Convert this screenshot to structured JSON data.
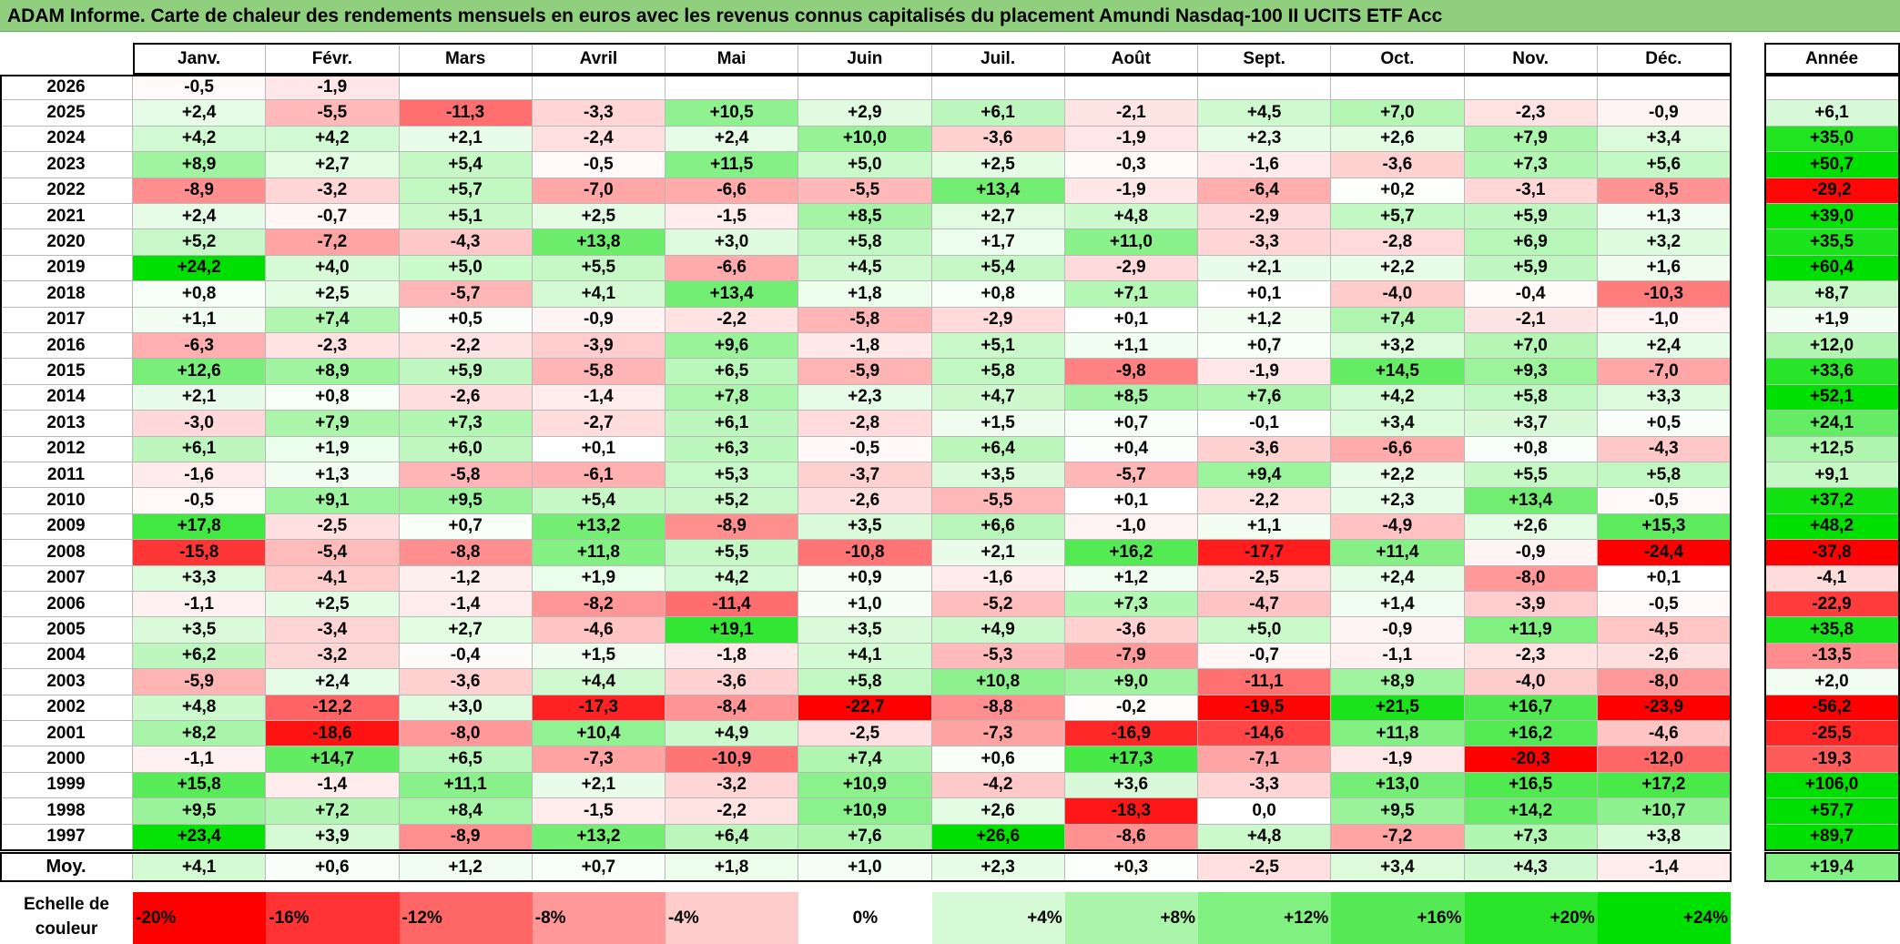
{
  "title": "ADAM Informe. Carte de chaleur des rendements mensuels en euros avec les revenus connus capitalisés du placement Amundi Nasdaq-100 II UCITS ETF Acc",
  "colors": {
    "positive_max": "#00e000",
    "negative_max": "#ff0000",
    "neutral": "#ffffff",
    "title_bg": "#8fcf7e"
  },
  "chart_data": {
    "type": "heatmap",
    "title": "ADAM Informe. Carte de chaleur des rendements mensuels en euros avec les revenus connus capitalisés du placement Amundi Nasdaq-100 II UCITS ETF Acc",
    "columns": [
      "Janv.",
      "Févr.",
      "Mars",
      "Avril",
      "Mai",
      "Juin",
      "Juil.",
      "Août",
      "Sept.",
      "Oct.",
      "Nov.",
      "Déc."
    ],
    "annual_header": "Année",
    "rows": [
      {
        "year": "2026",
        "months": [
          "-0,5",
          "-1,9",
          "",
          "",
          "",
          "",
          "",
          "",
          "",
          "",
          "",
          ""
        ],
        "annual": ""
      },
      {
        "year": "2025",
        "months": [
          "+2,4",
          "-5,5",
          "-11,3",
          "-3,3",
          "+10,5",
          "+2,9",
          "+6,1",
          "-2,1",
          "+4,5",
          "+7,0",
          "-2,3",
          "-0,9"
        ],
        "annual": "+6,1"
      },
      {
        "year": "2024",
        "months": [
          "+4,2",
          "+4,2",
          "+2,1",
          "-2,4",
          "+2,4",
          "+10,0",
          "-3,6",
          "-1,9",
          "+2,3",
          "+2,6",
          "+7,9",
          "+3,4"
        ],
        "annual": "+35,0"
      },
      {
        "year": "2023",
        "months": [
          "+8,9",
          "+2,7",
          "+5,4",
          "-0,5",
          "+11,5",
          "+5,0",
          "+2,5",
          "-0,3",
          "-1,6",
          "-3,6",
          "+7,3",
          "+5,6"
        ],
        "annual": "+50,7"
      },
      {
        "year": "2022",
        "months": [
          "-8,9",
          "-3,2",
          "+5,7",
          "-7,0",
          "-6,6",
          "-5,5",
          "+13,4",
          "-1,9",
          "-6,4",
          "+0,2",
          "-3,1",
          "-8,5"
        ],
        "annual": "-29,2"
      },
      {
        "year": "2021",
        "months": [
          "+2,4",
          "-0,7",
          "+5,1",
          "+2,5",
          "-1,5",
          "+8,5",
          "+2,7",
          "+4,8",
          "-2,9",
          "+5,7",
          "+5,9",
          "+1,3"
        ],
        "annual": "+39,0"
      },
      {
        "year": "2020",
        "months": [
          "+5,2",
          "-7,2",
          "-4,3",
          "+13,8",
          "+3,0",
          "+5,8",
          "+1,7",
          "+11,0",
          "-3,3",
          "-2,8",
          "+6,9",
          "+3,2"
        ],
        "annual": "+35,5"
      },
      {
        "year": "2019",
        "months": [
          "+24,2",
          "+4,0",
          "+5,0",
          "+5,5",
          "-6,6",
          "+4,5",
          "+5,4",
          "-2,9",
          "+2,1",
          "+2,2",
          "+5,9",
          "+1,6"
        ],
        "annual": "+60,4"
      },
      {
        "year": "2018",
        "months": [
          "+0,8",
          "+2,5",
          "-5,7",
          "+4,1",
          "+13,4",
          "+1,8",
          "+0,8",
          "+7,1",
          "+0,1",
          "-4,0",
          "-0,4",
          "-10,3"
        ],
        "annual": "+8,7"
      },
      {
        "year": "2017",
        "months": [
          "+1,1",
          "+7,4",
          "+0,5",
          "-0,9",
          "-2,2",
          "-5,8",
          "-2,9",
          "+0,1",
          "+1,2",
          "+7,4",
          "-2,1",
          "-1,0"
        ],
        "annual": "+1,9"
      },
      {
        "year": "2016",
        "months": [
          "-6,3",
          "-2,3",
          "-2,2",
          "-3,9",
          "+9,6",
          "-1,8",
          "+5,1",
          "+1,1",
          "+0,7",
          "+3,2",
          "+7,0",
          "+2,4"
        ],
        "annual": "+12,0"
      },
      {
        "year": "2015",
        "months": [
          "+12,6",
          "+8,9",
          "+5,9",
          "-5,8",
          "+6,5",
          "-5,9",
          "+5,8",
          "-9,8",
          "-1,9",
          "+14,5",
          "+9,3",
          "-7,0"
        ],
        "annual": "+33,6"
      },
      {
        "year": "2014",
        "months": [
          "+2,1",
          "+0,8",
          "-2,6",
          "-1,4",
          "+7,8",
          "+2,3",
          "+4,7",
          "+8,5",
          "+7,6",
          "+4,2",
          "+5,8",
          "+3,3"
        ],
        "annual": "+52,1"
      },
      {
        "year": "2013",
        "months": [
          "-3,0",
          "+7,9",
          "+7,3",
          "-2,7",
          "+6,1",
          "-2,8",
          "+1,5",
          "+0,7",
          "-0,1",
          "+3,4",
          "+3,7",
          "+0,5"
        ],
        "annual": "+24,1"
      },
      {
        "year": "2012",
        "months": [
          "+6,1",
          "+1,9",
          "+6,0",
          "+0,1",
          "+6,3",
          "-0,5",
          "+6,4",
          "+0,4",
          "-3,6",
          "-6,6",
          "+0,8",
          "-4,3"
        ],
        "annual": "+12,5"
      },
      {
        "year": "2011",
        "months": [
          "-1,6",
          "+1,3",
          "-5,8",
          "-6,1",
          "+5,3",
          "-3,7",
          "+3,5",
          "-5,7",
          "+9,4",
          "+2,2",
          "+5,5",
          "+5,8"
        ],
        "annual": "+9,1"
      },
      {
        "year": "2010",
        "months": [
          "-0,5",
          "+9,1",
          "+9,5",
          "+5,4",
          "+5,2",
          "-2,6",
          "-5,5",
          "+0,1",
          "-2,2",
          "+2,3",
          "+13,4",
          "-0,5"
        ],
        "annual": "+37,2"
      },
      {
        "year": "2009",
        "months": [
          "+17,8",
          "-2,5",
          "+0,7",
          "+13,2",
          "-8,9",
          "+3,5",
          "+6,6",
          "-1,0",
          "+1,1",
          "-4,9",
          "+2,6",
          "+15,3"
        ],
        "annual": "+48,2"
      },
      {
        "year": "2008",
        "months": [
          "-15,8",
          "-5,4",
          "-8,8",
          "+11,8",
          "+5,5",
          "-10,8",
          "+2,1",
          "+16,2",
          "-17,7",
          "+11,4",
          "-0,9",
          "-24,4"
        ],
        "annual": "-37,8"
      },
      {
        "year": "2007",
        "months": [
          "+3,3",
          "-4,1",
          "-1,2",
          "+1,9",
          "+4,2",
          "+0,9",
          "-1,6",
          "+1,2",
          "-2,5",
          "+2,4",
          "-8,0",
          "+0,1"
        ],
        "annual": "-4,1"
      },
      {
        "year": "2006",
        "months": [
          "-1,1",
          "+2,5",
          "-1,4",
          "-8,2",
          "-11,4",
          "+1,0",
          "-5,2",
          "+7,3",
          "-4,7",
          "+1,4",
          "-3,9",
          "-0,5"
        ],
        "annual": "-22,9"
      },
      {
        "year": "2005",
        "months": [
          "+3,5",
          "-3,4",
          "+2,7",
          "-4,6",
          "+19,1",
          "+3,5",
          "+4,9",
          "-3,6",
          "+5,0",
          "-0,9",
          "+11,9",
          "-4,5"
        ],
        "annual": "+35,8"
      },
      {
        "year": "2004",
        "months": [
          "+6,2",
          "-3,2",
          "-0,4",
          "+1,5",
          "-1,8",
          "+4,1",
          "-5,3",
          "-7,9",
          "-0,7",
          "-1,1",
          "-2,3",
          "-2,6"
        ],
        "annual": "-13,5"
      },
      {
        "year": "2003",
        "months": [
          "-5,9",
          "+2,4",
          "-3,6",
          "+4,4",
          "-3,6",
          "+5,8",
          "+10,8",
          "+9,0",
          "-11,1",
          "+8,9",
          "-4,0",
          "-8,0"
        ],
        "annual": "+2,0"
      },
      {
        "year": "2002",
        "months": [
          "+4,8",
          "-12,2",
          "+3,0",
          "-17,3",
          "-8,4",
          "-22,7",
          "-8,8",
          "-0,2",
          "-19,5",
          "+21,5",
          "+16,7",
          "-23,9"
        ],
        "annual": "-56,2"
      },
      {
        "year": "2001",
        "months": [
          "+8,2",
          "-18,6",
          "-8,0",
          "+10,4",
          "+4,9",
          "-2,5",
          "-7,3",
          "-16,9",
          "-14,6",
          "+11,8",
          "+16,2",
          "-4,6"
        ],
        "annual": "-25,5"
      },
      {
        "year": "2000",
        "months": [
          "-1,1",
          "+14,7",
          "+6,5",
          "-7,3",
          "-10,9",
          "+7,4",
          "+0,6",
          "+17,3",
          "-7,1",
          "-1,9",
          "-20,3",
          "-12,0"
        ],
        "annual": "-19,3"
      },
      {
        "year": "1999",
        "months": [
          "+15,8",
          "-1,4",
          "+11,1",
          "+2,1",
          "-3,2",
          "+10,9",
          "-4,2",
          "+3,6",
          "-3,3",
          "+13,0",
          "+16,5",
          "+17,2"
        ],
        "annual": "+106,0"
      },
      {
        "year": "1998",
        "months": [
          "+9,5",
          "+7,2",
          "+8,4",
          "-1,5",
          "-2,2",
          "+10,9",
          "+2,6",
          "-18,3",
          "0,0",
          "+9,5",
          "+14,2",
          "+10,7"
        ],
        "annual": "+57,7"
      },
      {
        "year": "1997",
        "months": [
          "+23,4",
          "+3,9",
          "-8,9",
          "+13,2",
          "+6,4",
          "+7,6",
          "+26,6",
          "-8,6",
          "+4,8",
          "-7,2",
          "+7,3",
          "+3,8"
        ],
        "annual": "+89,7"
      }
    ],
    "average": {
      "label": "Moy.",
      "months": [
        "+4,1",
        "+0,6",
        "+1,2",
        "+0,7",
        "+1,8",
        "+1,0",
        "+2,3",
        "+0,3",
        "-2,5",
        "+3,4",
        "+4,3",
        "-1,4"
      ],
      "annual": "+19,4"
    },
    "scale": {
      "label_line1": "Echelle de",
      "label_line2": "couleur",
      "steps": [
        "-20%",
        "-16%",
        "-12%",
        "-8%",
        "-4%",
        "0%",
        "+4%",
        "+8%",
        "+12%",
        "+16%",
        "+20%",
        "+24%"
      ],
      "values": [
        -20,
        -16,
        -12,
        -8,
        -4,
        0,
        4,
        8,
        12,
        16,
        20,
        24
      ]
    }
  }
}
